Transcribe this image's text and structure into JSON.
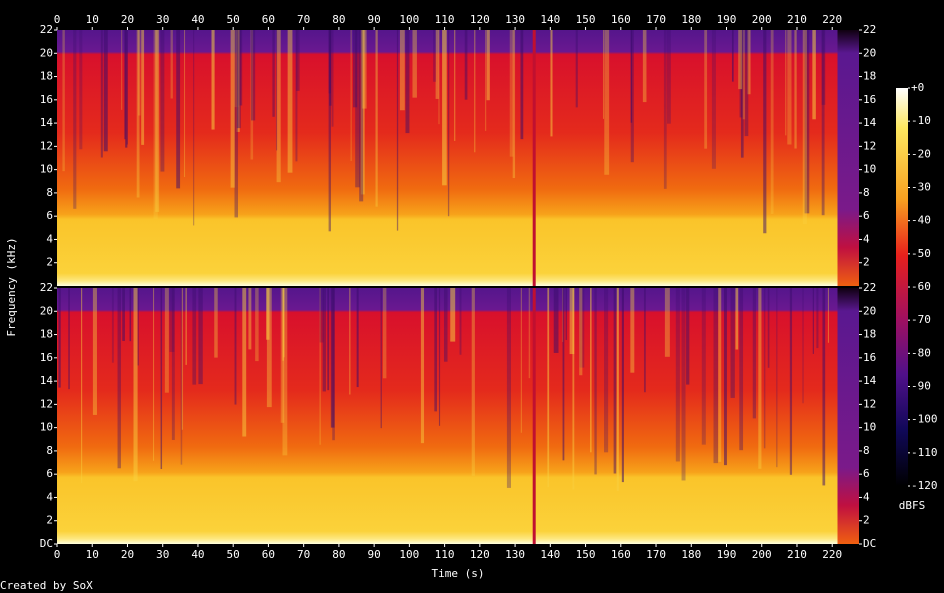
{
  "chart_data": {
    "type": "spectrogram",
    "x_label": "Time (s)",
    "y_label": "Frequency (kHz)",
    "xlim": [
      0,
      227.6
    ],
    "xticks": [
      0,
      10,
      20,
      30,
      40,
      50,
      60,
      70,
      80,
      90,
      100,
      110,
      120,
      130,
      140,
      150,
      160,
      170,
      180,
      190,
      200,
      210,
      220
    ],
    "channels": [
      {
        "ylim": [
          0,
          22
        ],
        "yticks": [
          2,
          4,
          6,
          8,
          10,
          12,
          14,
          16,
          18,
          20,
          22
        ]
      },
      {
        "ylim": [
          0,
          22
        ],
        "yticks": [
          {
            "value": 0,
            "label": "DC"
          },
          2,
          4,
          6,
          8,
          10,
          12,
          14,
          16,
          18,
          20,
          22
        ]
      }
    ],
    "colorbar": {
      "label": "dBFS",
      "lim": [
        -120,
        0
      ],
      "ticks": [
        {
          "value": 0,
          "label": "+0"
        },
        -10,
        -20,
        -30,
        -40,
        -50,
        -60,
        -70,
        -80,
        -90,
        -100,
        -110,
        -120
      ]
    },
    "footer": "Created by SoX"
  }
}
